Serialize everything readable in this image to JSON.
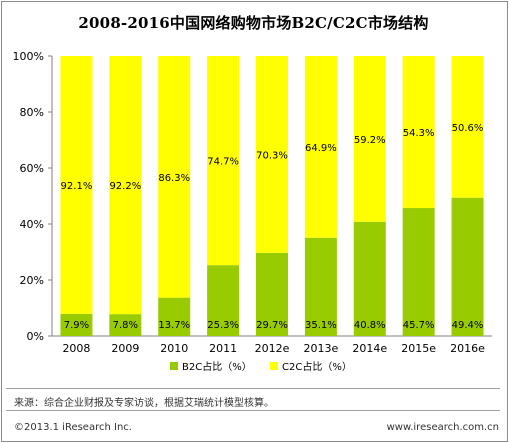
{
  "chart_data": {
    "type": "bar",
    "stacked": true,
    "title": "2008-2016中国网络购物市场B2C/C2C市场结构",
    "categories": [
      "2008",
      "2009",
      "2010",
      "2011",
      "2012e",
      "2013e",
      "2014e",
      "2015e",
      "2016e"
    ],
    "series": [
      {
        "name": "B2C占比（%）",
        "color": "#99cc00",
        "values": [
          7.9,
          7.8,
          13.7,
          25.3,
          29.7,
          35.1,
          40.8,
          45.7,
          49.4
        ],
        "labels": [
          "7.9%",
          "7.8%",
          "13.7%",
          "25.3%",
          "29.7%",
          "35.1%",
          "40.8%",
          "45.7%",
          "49.4%"
        ]
      },
      {
        "name": "C2C占比（%）",
        "color": "#ffff00",
        "values": [
          92.1,
          92.2,
          86.3,
          74.7,
          70.3,
          64.9,
          59.2,
          54.3,
          50.6
        ],
        "labels": [
          "92.1%",
          "92.2%",
          "86.3%",
          "74.7%",
          "70.3%",
          "64.9%",
          "59.2%",
          "54.3%",
          "50.6%"
        ]
      }
    ],
    "ylim": [
      0,
      100
    ],
    "yticks": [
      "0%",
      "20%",
      "40%",
      "60%",
      "80%",
      "100%"
    ],
    "grid": false,
    "legend_position": "bottom"
  },
  "footer": {
    "source": "来源：综合企业财报及专家访谈，根据艾瑞统计模型核算。",
    "copyright": "©2013.1 iResearch Inc.",
    "website": "www.iresearch.com.cn"
  }
}
